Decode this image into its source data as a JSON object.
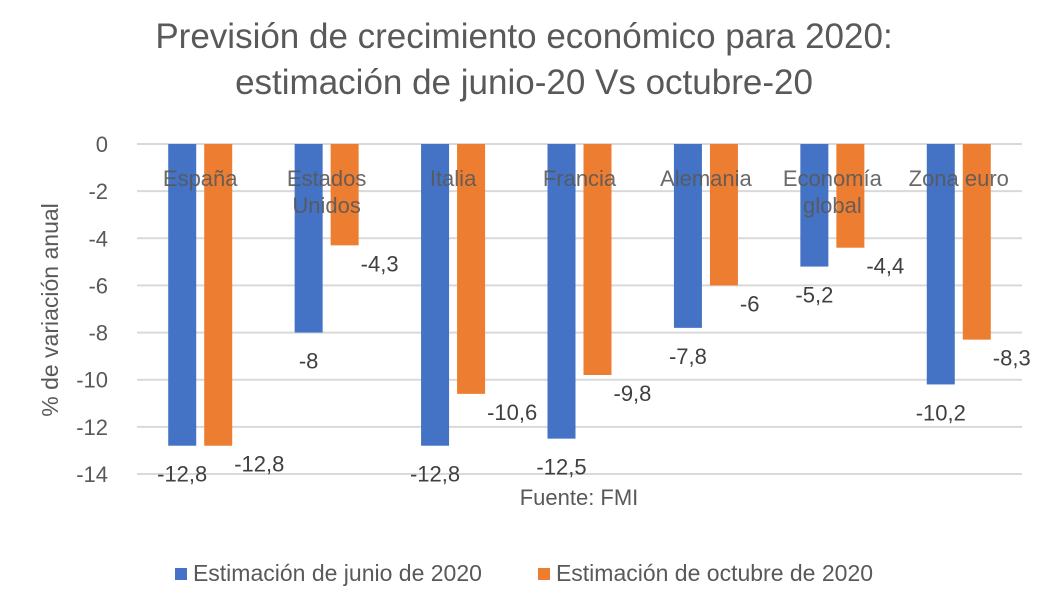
{
  "chart_data": {
    "type": "bar",
    "title": "Previsión de crecimiento económico para 2020:",
    "subtitle": "estimación de junio-20 Vs octubre-20",
    "xlabel": "",
    "ylabel": "% de variación anual",
    "annotation": "Fuente: FMI",
    "ylim": [
      -14,
      0
    ],
    "yticks": [
      0,
      -2,
      -4,
      -6,
      -8,
      -10,
      -12,
      -14
    ],
    "ytick_labels": [
      "0",
      "-2",
      "-4",
      "-6",
      "-8",
      "-10",
      "-12",
      "-14"
    ],
    "grid": true,
    "legend_position": "bottom",
    "categories": [
      [
        "España"
      ],
      [
        "Estados",
        "Unidos"
      ],
      [
        "Italia"
      ],
      [
        "Francia"
      ],
      [
        "Alemania"
      ],
      [
        "Economía",
        "global"
      ],
      [
        "Zona euro"
      ]
    ],
    "series": [
      {
        "name": "Estimación de junio de 2020",
        "color": "#4472C4",
        "values": [
          -12.8,
          -8,
          -12.8,
          -12.5,
          -7.8,
          -5.2,
          -10.2
        ],
        "labels": [
          "-12,8",
          "-8",
          "-12,8",
          "-12,5",
          "-7,8",
          "-5,2",
          "-10,2"
        ]
      },
      {
        "name": "Estimación de octubre de 2020",
        "color": "#ED7D31",
        "values": [
          -12.8,
          -4.3,
          -10.6,
          -9.8,
          -6,
          -4.4,
          -8.3
        ],
        "labels": [
          "-12,8",
          "-4,3",
          "-10,6",
          "-9,8",
          "-6",
          "-4,4",
          "-8,3"
        ]
      }
    ]
  }
}
